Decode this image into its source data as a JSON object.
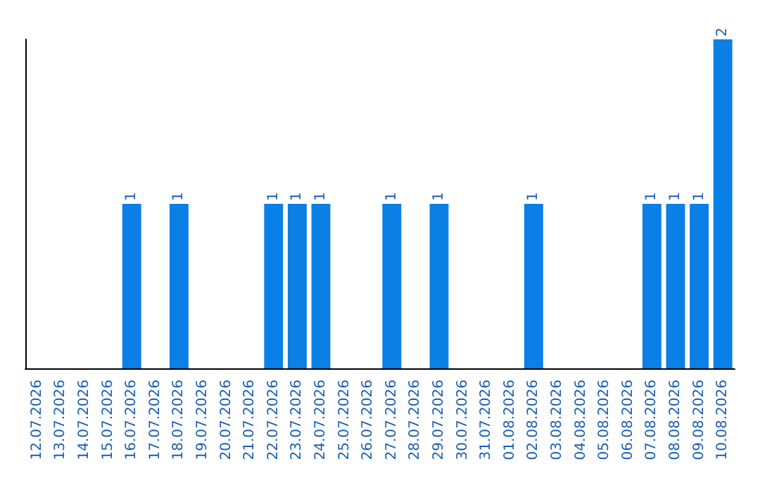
{
  "chart_data": {
    "type": "bar",
    "categories": [
      "12.07.2026",
      "13.07.2026",
      "14.07.2026",
      "15.07.2026",
      "16.07.2026",
      "17.07.2026",
      "18.07.2026",
      "19.07.2026",
      "20.07.2026",
      "21.07.2026",
      "22.07.2026",
      "23.07.2026",
      "24.07.2026",
      "25.07.2026",
      "26.07.2026",
      "27.07.2026",
      "28.07.2026",
      "29.07.2026",
      "30.07.2026",
      "31.07.2026",
      "01.08.2026",
      "02.08.2026",
      "03.08.2026",
      "04.08.2026",
      "05.08.2026",
      "06.08.2026",
      "07.08.2026",
      "08.08.2026",
      "09.08.2026",
      "10.08.2026"
    ],
    "values": [
      0,
      0,
      0,
      0,
      1,
      0,
      1,
      0,
      0,
      0,
      1,
      1,
      1,
      0,
      0,
      1,
      0,
      1,
      0,
      0,
      0,
      1,
      0,
      0,
      0,
      0,
      1,
      1,
      1,
      2
    ],
    "value_labels": [
      null,
      null,
      null,
      null,
      "1",
      null,
      "1",
      null,
      null,
      null,
      "1",
      "1",
      "1",
      null,
      null,
      "1",
      null,
      "1",
      null,
      null,
      null,
      "1",
      null,
      null,
      null,
      null,
      "1",
      "1",
      "1",
      "2"
    ],
    "color": "#0a7fe6",
    "grid": false,
    "tick_labels": "x"
  }
}
